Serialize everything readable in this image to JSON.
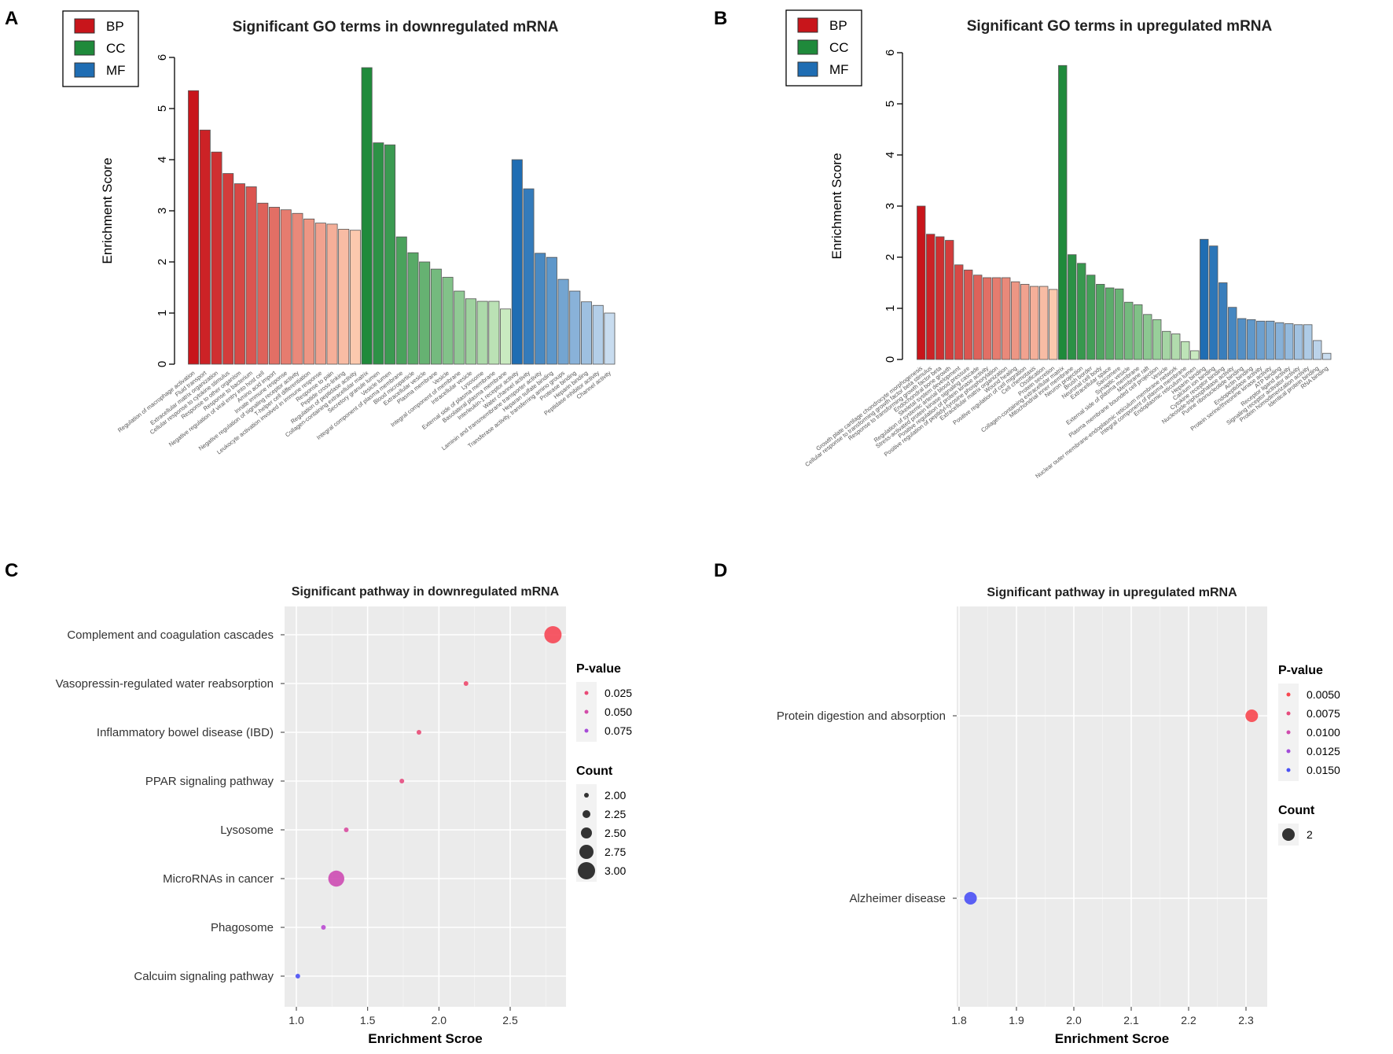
{
  "panels": {
    "a": "A",
    "b": "B",
    "c": "C",
    "d": "D"
  },
  "chart_data": [
    {
      "type": "bar",
      "title": "Significant GO terms in downregulated mRNA",
      "ylabel": "Enrichment Score",
      "ylim": [
        0,
        6
      ],
      "yticks": [
        0,
        1,
        2,
        3,
        4,
        5,
        6
      ],
      "legend": {
        "placement": "top-left",
        "entries": [
          "BP",
          "CC",
          "MF"
        ]
      },
      "colors": {
        "BP": [
          "#c8151b",
          "#fcc9ae"
        ],
        "CC": [
          "#1f8a3b",
          "#c9eac0"
        ],
        "MF": [
          "#1f6db3",
          "#c8dcef"
        ]
      },
      "series": [
        {
          "name": "BP",
          "categories": [
            "Regulation of macrophage activation",
            "Fluid transport",
            "Extracellular matrix organization",
            "Cellular response to cytokine stimulus",
            "Response to other organism",
            "Response to bacterium",
            "Negative regulation of viral entry into host cell",
            "Amino acid import",
            "Innate immune response",
            "Negative regulation of signaling receptor activity",
            "T-helper cell differentiation",
            "Leukocyte activation involved in immune response",
            "Response to pain",
            "Peptide cross-linking",
            "Regulation of peptidase activity"
          ],
          "values": [
            5.35,
            4.58,
            4.15,
            3.73,
            3.53,
            3.47,
            3.15,
            3.07,
            3.02,
            2.95,
            2.84,
            2.76,
            2.74,
            2.64,
            2.62
          ]
        },
        {
          "name": "CC",
          "categories": [
            "Collagen-containing extracellular matrix",
            "Secretory granule lumen",
            "Vesicle lumen",
            "Integral component of plasma membrane",
            "Blood microparticle",
            "Extracellular vesicle",
            "Plasma membrane",
            "Vesicle",
            "Integral component of membrane",
            "Intracellular vesicle",
            "Lysosome",
            "External side of plasma membrane",
            "Basolateral plasma membrane"
          ],
          "values": [
            5.8,
            4.33,
            4.29,
            2.49,
            2.18,
            2.0,
            1.86,
            1.7,
            1.43,
            1.28,
            1.23,
            1.23,
            1.08
          ]
        },
        {
          "name": "MF",
          "categories": [
            "Interleukin-1 receptor activity",
            "Water channel activity",
            "Laminin and transmembrane transporter activity",
            "Heparan sulfate binding",
            "Transferase activity, transferring amino groups",
            "Protease binding",
            "Heparin binding",
            "Peptidase inhibitor activity",
            "Channel activity"
          ],
          "values": [
            4.0,
            3.43,
            2.17,
            2.09,
            1.66,
            1.43,
            1.22,
            1.15,
            1.0
          ]
        }
      ]
    },
    {
      "type": "bar",
      "title": "Significant GO terms in upregulated mRNA",
      "ylabel": "Enrichment Score",
      "ylim": [
        0,
        6
      ],
      "yticks": [
        0,
        1,
        2,
        3,
        4,
        5,
        6
      ],
      "legend": {
        "placement": "top-left",
        "entries": [
          "BP",
          "CC",
          "MF"
        ]
      },
      "colors": {
        "BP": [
          "#c8151b",
          "#fcc9ae"
        ],
        "CC": [
          "#1f8a3b",
          "#c9eac0"
        ],
        "MF": [
          "#1f6db3",
          "#c8dcef"
        ]
      },
      "series": [
        {
          "name": "BP",
          "categories": [
            "Growth plate cartilage chondrocyte morphogenesis",
            "Cellular response to transforming growth factor beta stimulus",
            "Response to transforming growth factor beta",
            "Endochondral bone growth",
            "Skeletal system development",
            "Regulation of systemic arterial blood pressure",
            "Stress-activated protein kinase signaling cascade",
            "Positive regulation of protein kinase activity",
            "Positive regulation of peptidyl-tyrosine phosphorylation",
            "Extracellular matrix organization",
            "Wound healing",
            "Positive regulation of cell migration",
            "Cell chemotaxis",
            "Ossification",
            "Protein secretion"
          ],
          "values": [
            3.0,
            2.45,
            2.4,
            2.33,
            1.85,
            1.75,
            1.65,
            1.6,
            1.6,
            1.6,
            1.52,
            1.47,
            1.43,
            1.43,
            1.37
          ]
        },
        {
          "name": "CC",
          "categories": [
            "Collagen-containing extracellular matrix",
            "Mitochondrial inner membrane",
            "Neuron projection",
            "Brush border",
            "Neuronal cell body",
            "Extracellular space",
            "Sarcomere",
            "Synaptic vesicle",
            "External side of plasma membrane",
            "Membrane raft",
            "Plasma membrane bounded cell projection",
            "Vesicle",
            "Nuclear outer membrane-endoplasmic reticulum membrane network",
            "Integral component of plasma membrane",
            "Endoplasmic reticulum lumen"
          ],
          "values": [
            5.75,
            2.05,
            1.88,
            1.65,
            1.47,
            1.4,
            1.38,
            1.12,
            1.07,
            0.88,
            0.78,
            0.55,
            0.5,
            0.35,
            0.17
          ]
        },
        {
          "name": "MF",
          "categories": [
            "Heparin binding",
            "Calcium ion binding",
            "Cytokine receptor binding",
            "Nucleoside-triphosphatase activity",
            "Purine ribonucleotide binding",
            "Actin binding",
            "Endopeptidase activity",
            "Protein serine/threonine kinase activity",
            "ATP binding",
            "Receptor ligand activity",
            "Signaling receptor activator activity",
            "Protein homodimerization activity",
            "Identical protein binding",
            "RNA binding"
          ],
          "values": [
            2.35,
            2.22,
            1.5,
            1.02,
            0.8,
            0.78,
            0.75,
            0.75,
            0.72,
            0.7,
            0.68,
            0.68,
            0.37,
            0.12
          ]
        }
      ]
    },
    {
      "type": "scatter",
      "title": "Significant pathway in downregulated mRNA",
      "xlabel": "Enrichment Scroe",
      "xlim": [
        0.9,
        2.85
      ],
      "xticks": [
        "1.0",
        "1.5",
        "2.0",
        "2.5"
      ],
      "categories": [
        "Complement and coagulation cascades",
        "Vasopressin-regulated water reabsorption",
        "Inflammatory bowel disease (IBD)",
        "PPAR signaling pathway",
        "Lysosome",
        "MicroRNAs in cancer",
        "Phagosome",
        "Calcuim signaling pathway"
      ],
      "x": [
        2.8,
        2.19,
        1.86,
        1.74,
        1.35,
        1.28,
        1.19,
        1.01
      ],
      "pvalue": [
        0.008,
        0.02,
        0.025,
        0.03,
        0.045,
        0.055,
        0.07,
        0.1
      ],
      "count": [
        3,
        2,
        2,
        2,
        2,
        2.9,
        2,
        2
      ],
      "legend_pvalue": {
        "title": "P-value",
        "placement": "right",
        "entries": [
          "0.025",
          "0.050",
          "0.075"
        ],
        "values": [
          0.025,
          0.05,
          0.075
        ]
      },
      "legend_count": {
        "title": "Count",
        "entries": [
          "2.00",
          "2.25",
          "2.50",
          "2.75",
          "3.00"
        ],
        "values": [
          2,
          2.25,
          2.5,
          2.75,
          3
        ]
      },
      "prange": [
        0.005,
        0.1
      ]
    },
    {
      "type": "scatter",
      "title": "Significant pathway in upregulated mRNA",
      "xlabel": "Enrichment Scroe",
      "xlim": [
        1.8,
        2.32
      ],
      "xticks": [
        "1.8",
        "1.9",
        "2.0",
        "2.1",
        "2.2",
        "2.3"
      ],
      "categories": [
        "Protein digestion and absorption",
        "Alzheimer disease"
      ],
      "x": [
        2.31,
        1.82
      ],
      "pvalue": [
        0.005,
        0.015
      ],
      "count": [
        2,
        2
      ],
      "legend_pvalue": {
        "title": "P-value",
        "placement": "right",
        "entries": [
          "0.0050",
          "0.0075",
          "0.0100",
          "0.0125",
          "0.0150"
        ],
        "values": [
          0.005,
          0.0075,
          0.01,
          0.0125,
          0.015
        ]
      },
      "legend_count": {
        "title": "Count",
        "entries": [
          "2"
        ],
        "values": [
          2
        ]
      },
      "prange": [
        0.005,
        0.015
      ]
    }
  ]
}
